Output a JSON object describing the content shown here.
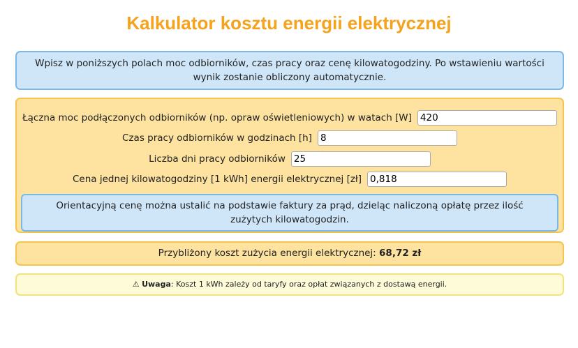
{
  "title": "Kalkulator kosztu energii elektrycznej",
  "info": "Wpisz w poniższych polach moc odbiorników, czas pracy oraz cenę kilowatogodziny. Po wstawieniu wartości wynik zostanie obliczony automatycznie.",
  "fields": [
    {
      "label": "Łączna moc podłączonych odbiorników (np. opraw oświetleniowych) w watach [W]",
      "value": "420"
    },
    {
      "label": "Czas pracy odbiorników w godzinach [h]",
      "value": "8"
    },
    {
      "label": "Liczba dni pracy odbiorników",
      "value": "25"
    },
    {
      "label": "Cena jednej kilowatogodziny [1 kWh] energii elektrycznej [zł]",
      "value": "0,818"
    }
  ],
  "note": "Orientacyjną cenę można ustalić na podstawie faktury za prąd, dzieląc naliczoną opłatę przez ilość zużytych kilowatogodzin.",
  "result": {
    "label": "Przybliżony koszt zużycia energii elektrycznej:",
    "value": "68,72 zł"
  },
  "warning": {
    "icon": "warning-icon",
    "symbol": "⚠",
    "bold": "Uwaga",
    "text": ": Koszt 1 kWh zależy od taryfy oraz opłat związanych z dostawą energii."
  }
}
